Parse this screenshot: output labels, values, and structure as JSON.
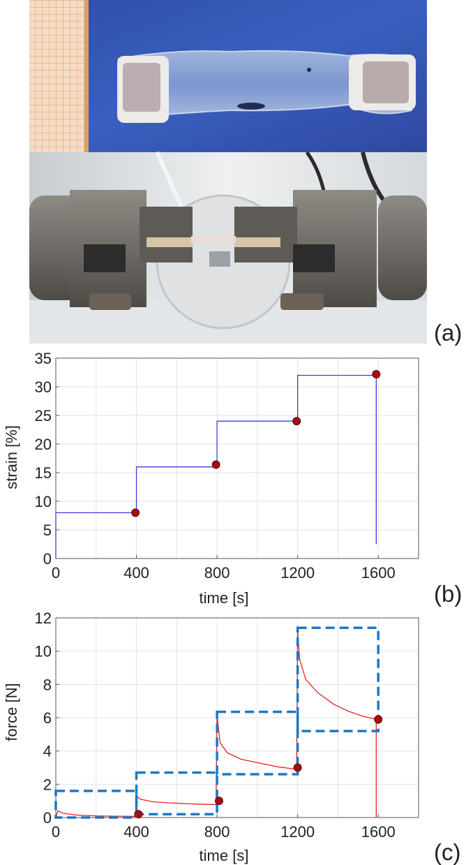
{
  "panels": {
    "a": {
      "label": "(a)",
      "photo_top": "specimen-photo",
      "photo_bottom": "tensile-grips-photo"
    },
    "b": {
      "label": "(b)"
    },
    "c": {
      "label": "(c)"
    }
  },
  "chart_data": [
    {
      "panel": "b",
      "type": "line",
      "xlabel": "time [s]",
      "ylabel": "strain [%]",
      "xlim": [
        0,
        1800
      ],
      "ylim": [
        0,
        35
      ],
      "xticks": [
        0,
        400,
        800,
        1200,
        1600
      ],
      "yticks": [
        0,
        5,
        10,
        15,
        20,
        25,
        30,
        35
      ],
      "grid": true,
      "colors": {
        "line": "#3c3cdc",
        "marker": "#a01010"
      },
      "series": [
        {
          "style": "solid-blue-line",
          "x": [
            0,
            0,
            400,
            400,
            800,
            800,
            1200,
            1200,
            1590,
            1590
          ],
          "y": [
            0,
            8,
            8,
            16,
            16,
            24,
            24,
            32,
            32,
            2.5
          ]
        },
        {
          "style": "red-dot-markers",
          "x": [
            395,
            795,
            1195,
            1590
          ],
          "y": [
            8,
            16.4,
            24,
            32.2
          ]
        }
      ]
    },
    {
      "panel": "c",
      "type": "line",
      "xlabel": "time [s]",
      "ylabel": "force [N]",
      "xlim": [
        0,
        1800
      ],
      "ylim": [
        0,
        12
      ],
      "xticks": [
        0,
        400,
        800,
        1200,
        1600
      ],
      "yticks": [
        0,
        2,
        4,
        6,
        8,
        10,
        12
      ],
      "grid": true,
      "colors": {
        "line": "#e8202a",
        "marker": "#a01010",
        "box": "#1f77c4"
      },
      "series": [
        {
          "style": "solid-red-line",
          "x": [
            0,
            10,
            40,
            100,
            200,
            300,
            395,
            400,
            420,
            480,
            560,
            650,
            720,
            795,
            800,
            815,
            850,
            920,
            1000,
            1100,
            1195,
            1200,
            1210,
            1240,
            1300,
            1380,
            1450,
            1520,
            1590,
            1590
          ],
          "y": [
            0,
            0.4,
            0.25,
            0.15,
            0.1,
            0.08,
            0.07,
            1.3,
            1.1,
            0.95,
            0.88,
            0.83,
            0.8,
            0.78,
            6.2,
            4.5,
            3.9,
            3.5,
            3.3,
            3.05,
            2.9,
            11.2,
            9.5,
            8.3,
            7.5,
            6.8,
            6.4,
            6.1,
            5.9,
            0
          ]
        },
        {
          "style": "red-dot-markers",
          "x": [
            410,
            810,
            1200,
            1600
          ],
          "y": [
            0.2,
            1.0,
            3.0,
            5.9
          ]
        },
        {
          "style": "dashed-blue-boxes",
          "boxes": [
            {
              "x": [
                0,
                400
              ],
              "y": [
                0,
                1.6
              ]
            },
            {
              "x": [
                400,
                800
              ],
              "y": [
                0.2,
                2.7
              ]
            },
            {
              "x": [
                800,
                1200
              ],
              "y": [
                2.6,
                6.35
              ]
            },
            {
              "x": [
                1200,
                1600
              ],
              "y": [
                5.2,
                11.4
              ]
            }
          ]
        }
      ]
    }
  ]
}
